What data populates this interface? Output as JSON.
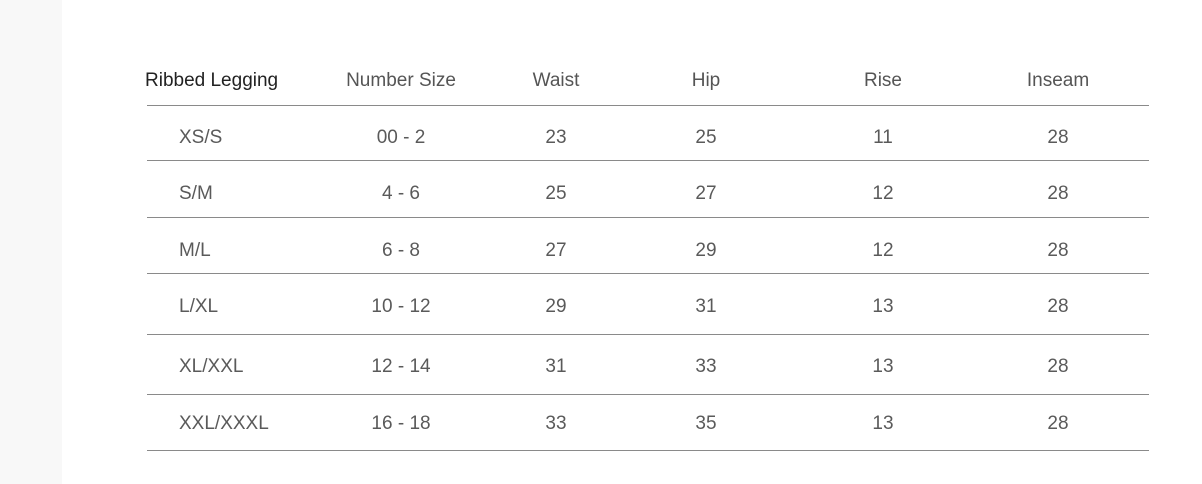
{
  "table": {
    "headers": [
      "Ribbed Legging",
      "Number Size",
      "Waist",
      "Hip",
      "Rise",
      "Inseam"
    ],
    "rows": [
      [
        "XS/S",
        "00 - 2",
        "23",
        "25",
        "11",
        "28"
      ],
      [
        "S/M",
        "4 - 6",
        "25",
        "27",
        "12",
        "28"
      ],
      [
        "M/L",
        "6 - 8",
        "27",
        "29",
        "12",
        "28"
      ],
      [
        "L/XL",
        "10 - 12",
        "29",
        "31",
        "13",
        "28"
      ],
      [
        "XL/XXL",
        "12 - 14",
        "31",
        "33",
        "13",
        "28"
      ],
      [
        "XXL/XXXL",
        "16 - 18",
        "33",
        "35",
        "13",
        "28"
      ]
    ]
  }
}
